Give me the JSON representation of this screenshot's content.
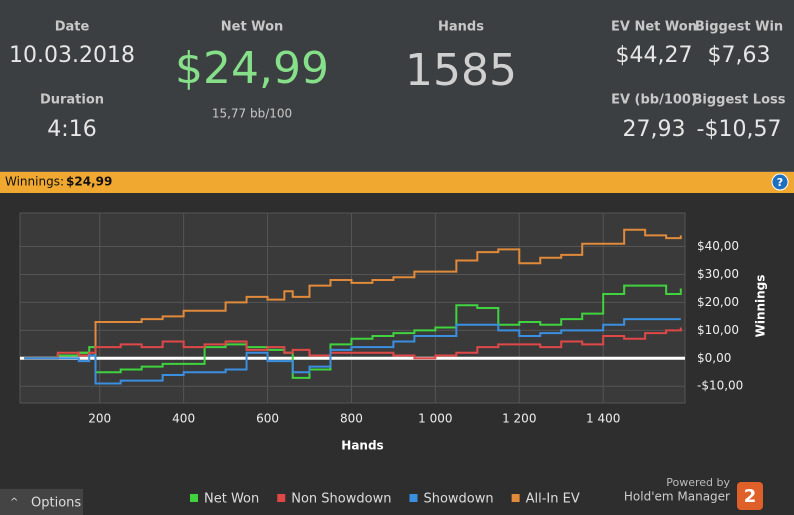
{
  "stats": {
    "date_label": "Date",
    "date": "10.03.2018",
    "duration_label": "Duration",
    "duration": "4:16",
    "net_won_label": "Net Won",
    "net_won": "$24,99",
    "bb100": "15,77 bb/100",
    "hands_label": "Hands",
    "hands": "1585",
    "ev_net_won_label": "EV Net Won",
    "ev_net_won": "$44,27",
    "biggest_win_label": "Biggest Win",
    "biggest_win": "$7,63",
    "ev_bb_label": "EV (bb/100)",
    "ev_bb": "27,93",
    "biggest_loss_label": "Biggest Loss",
    "biggest_loss": "-$10,57"
  },
  "banner": {
    "label": "Winnings:",
    "value": "$24,99",
    "help": "?"
  },
  "chart_data": {
    "type": "line",
    "x_label": "Hands",
    "y_label": "Winnings",
    "x": [
      20,
      100,
      150,
      175,
      190,
      250,
      300,
      350,
      400,
      450,
      500,
      550,
      600,
      640,
      660,
      700,
      750,
      800,
      850,
      900,
      950,
      1000,
      1050,
      1100,
      1150,
      1200,
      1250,
      1300,
      1350,
      1400,
      1450,
      1500,
      1550,
      1585
    ],
    "series": [
      {
        "name": "Net Won",
        "color": "#3fd33f",
        "values": [
          0,
          1,
          2,
          4,
          -5,
          -4,
          -3,
          -2,
          -2,
          4,
          5,
          4,
          3,
          2,
          -7,
          -4,
          5,
          7,
          8,
          9,
          10,
          11,
          19,
          18,
          12,
          13,
          12,
          14,
          16,
          23,
          26,
          26,
          23,
          25
        ]
      },
      {
        "name": "Non Showdown",
        "color": "#e04848",
        "values": [
          0,
          2,
          1,
          2,
          4,
          5,
          4,
          6,
          4,
          5,
          6,
          3,
          4,
          2,
          3,
          1,
          2,
          2,
          2,
          1,
          0,
          1,
          2,
          4,
          5,
          5,
          4,
          6,
          5,
          8,
          7,
          9,
          10,
          11
        ]
      },
      {
        "name": "Showdown",
        "color": "#3b8fe0",
        "values": [
          0,
          0,
          -1,
          1,
          -9,
          -8,
          -8,
          -6,
          -5,
          -5,
          -4,
          2,
          -1,
          -1,
          -5,
          -3,
          3,
          4,
          4,
          6,
          8,
          8,
          12,
          12,
          10,
          8,
          9,
          10,
          10,
          12,
          14,
          14,
          14,
          14
        ]
      },
      {
        "name": "All-In EV",
        "color": "#e08a3a",
        "values": [
          0,
          1,
          2,
          1,
          13,
          13,
          14,
          15,
          17,
          17,
          20,
          22,
          21,
          24,
          22,
          26,
          28,
          27,
          28,
          29,
          31,
          31,
          35,
          38,
          39,
          34,
          36,
          37,
          41,
          41,
          46,
          44,
          43,
          44
        ]
      }
    ],
    "xlim": [
      10,
      1595
    ],
    "ylim": [
      -16,
      52
    ],
    "xticks": [
      200,
      400,
      600,
      800,
      {
        "value": 1000,
        "label": "1 000"
      },
      {
        "value": 1200,
        "label": "1 200"
      },
      {
        "value": 1400,
        "label": "1 400"
      }
    ],
    "yticks": [
      {
        "value": -10,
        "label": "-$10,00"
      },
      {
        "value": 0,
        "label": "$0,00"
      },
      {
        "value": 10,
        "label": "$10,00"
      },
      {
        "value": 20,
        "label": "$20,00"
      },
      {
        "value": 30,
        "label": "$30,00"
      },
      {
        "value": 40,
        "label": "$40,00"
      }
    ],
    "grid": true,
    "zero_line": true,
    "legend": "bottom"
  },
  "footer": {
    "options": "Options",
    "powered": "Powered by",
    "brand": "Hold'em Manager",
    "logo": "2"
  }
}
